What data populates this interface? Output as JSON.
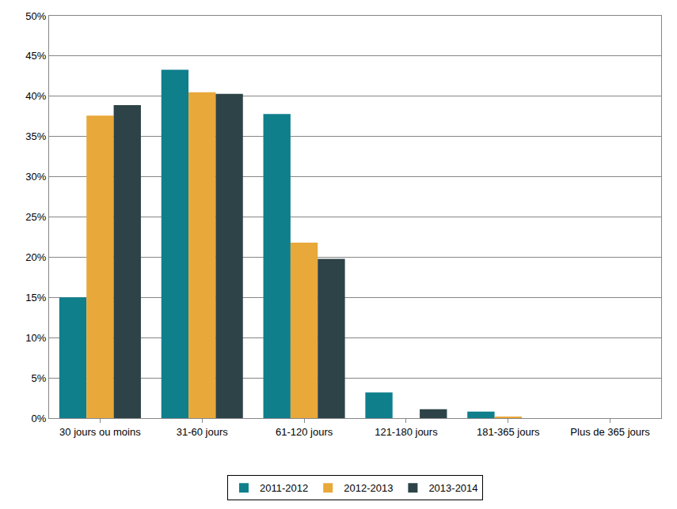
{
  "chart_data": {
    "type": "bar",
    "categories": [
      "30 jours ou moins",
      "31-60 jours",
      "61-120 jours",
      "121-180 jours",
      "181-365 jours",
      "Plus de 365 jours"
    ],
    "series": [
      {
        "name": "2011-2012",
        "color": "#0f7f8c",
        "values": [
          15.0,
          43.3,
          37.8,
          3.2,
          0.8,
          0
        ]
      },
      {
        "name": "2012-2013",
        "color": "#e9a83a",
        "values": [
          37.6,
          40.5,
          21.8,
          0,
          0.2,
          0
        ]
      },
      {
        "name": "2013-2014",
        "color": "#2d4347",
        "values": [
          38.9,
          40.3,
          19.8,
          1.1,
          0,
          0
        ]
      }
    ],
    "ylim": [
      0,
      50
    ],
    "yticks": [
      {
        "value": 0,
        "label": "0%"
      },
      {
        "value": 5,
        "label": "5%"
      },
      {
        "value": 10,
        "label": "10%"
      },
      {
        "value": 15,
        "label": "15%"
      },
      {
        "value": 20,
        "label": "20%"
      },
      {
        "value": 25,
        "label": "25%"
      },
      {
        "value": 30,
        "label": "30%"
      },
      {
        "value": 35,
        "label": "35%"
      },
      {
        "value": 40,
        "label": "40%"
      },
      {
        "value": 45,
        "label": "45%"
      },
      {
        "value": 50,
        "label": "50%"
      }
    ],
    "grid": true,
    "legend": "bottom"
  }
}
